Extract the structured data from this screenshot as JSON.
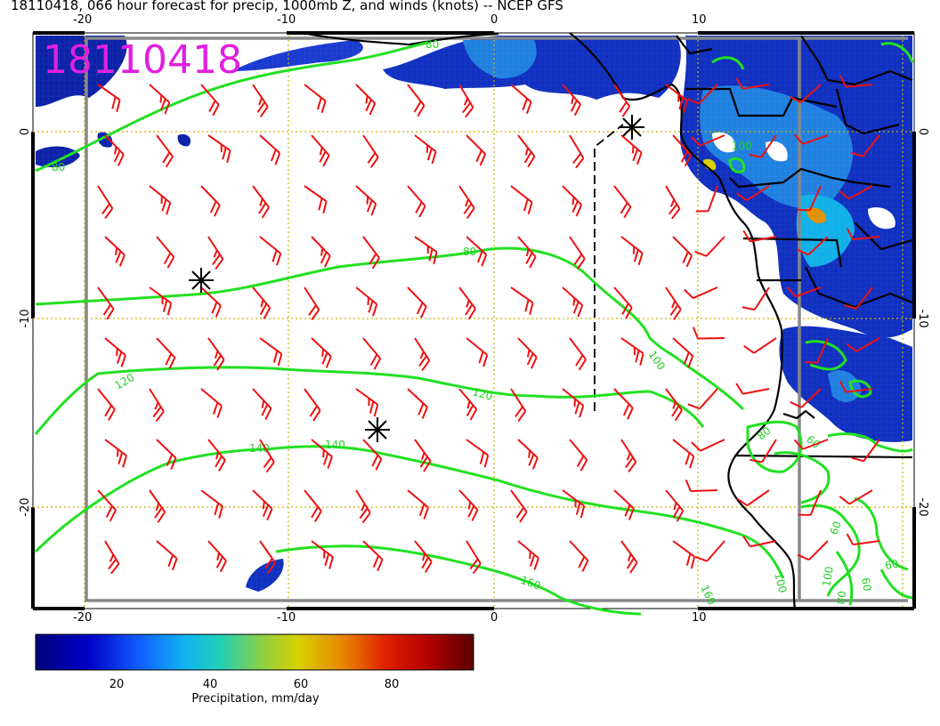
{
  "title": "18110418, 066 hour forecast for precip, 1000mb Z, and winds (knots) -- NCEP GFS",
  "stamp": "18110418",
  "colors": {
    "stamp": "#e020e0",
    "contour": "#22e022",
    "barb": "#ee1111",
    "border": "#000000",
    "grid": "#c8b400",
    "frame": "#888888"
  },
  "axes": {
    "top_ticks": [
      "-20",
      "-10",
      "0",
      "10"
    ],
    "bottom_ticks": [
      "-20",
      "-10",
      "0",
      "10"
    ],
    "left_ticks": [
      "0",
      "-10",
      "-20"
    ],
    "right_ticks": [
      "0",
      "-10",
      "-20"
    ]
  },
  "contour_labels": [
    "80",
    "80",
    "80",
    "100",
    "100",
    "120",
    "120",
    "140",
    "140",
    "160",
    "160",
    "60",
    "80",
    "60",
    "100",
    "100",
    "80",
    "60",
    "60"
  ],
  "colorbar": {
    "ticks": [
      "20",
      "40",
      "60",
      "80"
    ],
    "label": "Precipitation, mm/day"
  }
}
